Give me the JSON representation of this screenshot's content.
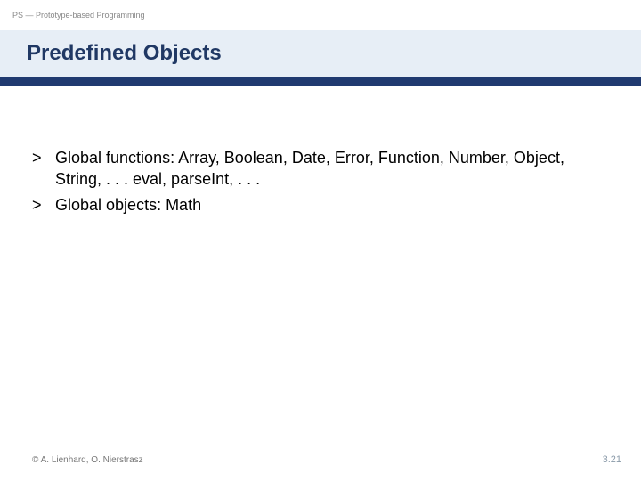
{
  "header": {
    "course_label": "PS — Prototype-based Programming"
  },
  "title": "Predefined Objects",
  "body": {
    "items": [
      {
        "bullet": ">",
        "text": "Global functions: Array, Boolean, Date, Error, Function, Number, Object, String, . . . eval, parseInt, . . ."
      },
      {
        "bullet": ">",
        "text": "Global objects: Math"
      }
    ]
  },
  "footer": {
    "copyright": "© A. Lienhard, O. Nierstrasz",
    "page_number": "3.21"
  },
  "colors": {
    "title_band_bg": "#e7eef6",
    "title_text": "#203864",
    "rule": "#203a70",
    "header_text": "#888888",
    "footer_left": "#777777",
    "footer_right": "#8a9aa9",
    "body_text": "#000000",
    "background": "#ffffff"
  },
  "fonts": {
    "header_label_pt": 9,
    "title_pt": 24,
    "body_pt": 18,
    "footer_pt": 10,
    "pagenum_pt": 11
  }
}
